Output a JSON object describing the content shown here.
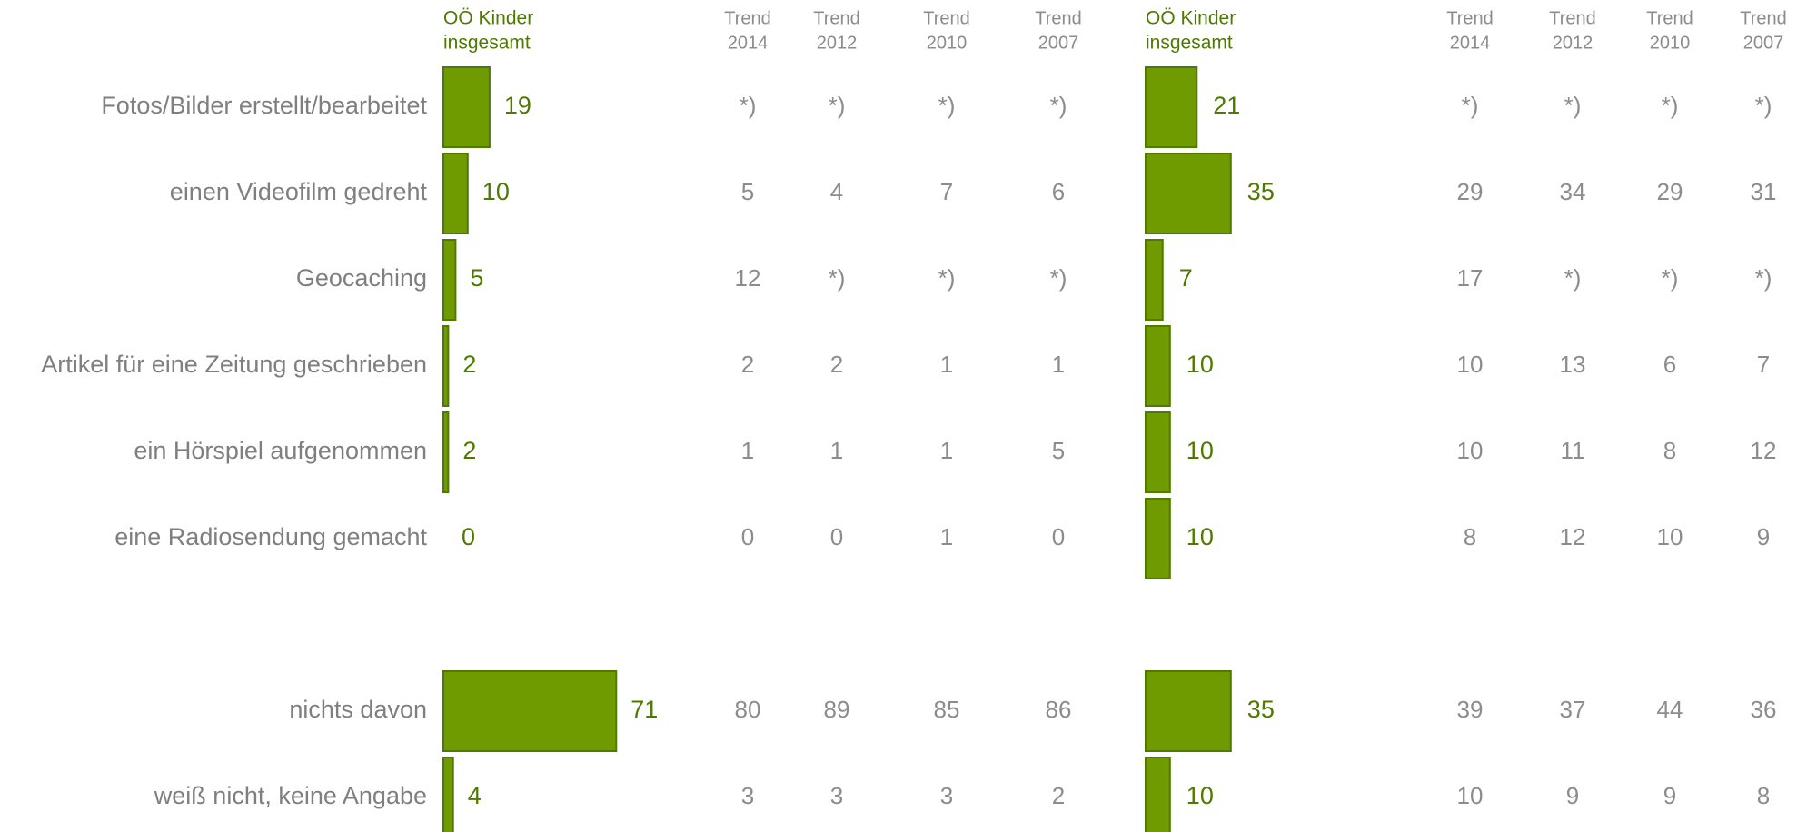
{
  "colors": {
    "bar": "#6f9a00",
    "bar_stroke": "#4f7a00",
    "value_text": "#4f7a00",
    "gray_text": "#7f7f7f"
  },
  "chart_data": [
    {
      "type": "bar",
      "orientation": "horizontal",
      "header": [
        "OÖ Kinder",
        "insgesamt"
      ],
      "categories": [
        "Fotos/Bilder erstellt/bearbeitet",
        "einen Videofilm gedreht",
        "Geocaching",
        "Artikel für eine Zeitung geschrieben",
        "ein Hörspiel aufgenommen",
        "eine Radiosendung gemacht",
        "nichts davon",
        "weiß nicht, keine Angabe"
      ],
      "values": [
        19,
        10,
        5,
        2,
        2,
        0,
        71,
        4
      ],
      "value_labels": [
        "19",
        "10",
        "5",
        "2",
        "2",
        "0",
        "71",
        "4"
      ],
      "trend_headers": [
        [
          "Trend",
          "2014"
        ],
        [
          "Trend",
          "2012"
        ],
        [
          "Trend",
          "2010"
        ],
        [
          "Trend",
          "2007"
        ]
      ],
      "trend_values": [
        [
          "*)",
          "*)",
          "*)",
          "*)"
        ],
        [
          "5",
          "4",
          "7",
          "6"
        ],
        [
          "12",
          "*)",
          "*)",
          "*)"
        ],
        [
          "2",
          "2",
          "1",
          "1"
        ],
        [
          "1",
          "1",
          "1",
          "5"
        ],
        [
          "0",
          "0",
          "1",
          "0"
        ],
        [
          "80",
          "89",
          "85",
          "86"
        ],
        [
          "3",
          "3",
          "3",
          "2"
        ]
      ]
    },
    {
      "type": "bar",
      "orientation": "horizontal",
      "header": [
        "OÖ Kinder",
        "insgesamt"
      ],
      "categories": [
        "Fotos/Bilder erstellt/bearbeitet",
        "einen Videofilm gedreht",
        "Geocaching",
        "Artikel für eine Zeitung geschrieben",
        "ein Hörspiel aufgenommen",
        "eine Radiosendung gemacht",
        "nichts davon",
        "weiß nicht, keine Angabe"
      ],
      "values": [
        21,
        35,
        7,
        10,
        10,
        10,
        35,
        10
      ],
      "value_labels": [
        "21",
        "35",
        "7",
        "10",
        "10",
        "10",
        "35",
        "10"
      ],
      "trend_headers": [
        [
          "Trend",
          "2014"
        ],
        [
          "Trend",
          "2012"
        ],
        [
          "Trend",
          "2010"
        ],
        [
          "Trend",
          "2007"
        ]
      ],
      "trend_values": [
        [
          "*)",
          "*)",
          "*)",
          "*)"
        ],
        [
          "29",
          "34",
          "29",
          "31"
        ],
        [
          "17",
          "*)",
          "*)",
          "*)"
        ],
        [
          "10",
          "13",
          "6",
          "7"
        ],
        [
          "10",
          "11",
          "8",
          "12"
        ],
        [
          "8",
          "12",
          "10",
          "9"
        ],
        [
          "39",
          "37",
          "44",
          "36"
        ],
        [
          "10",
          "9",
          "9",
          "8"
        ]
      ]
    }
  ]
}
